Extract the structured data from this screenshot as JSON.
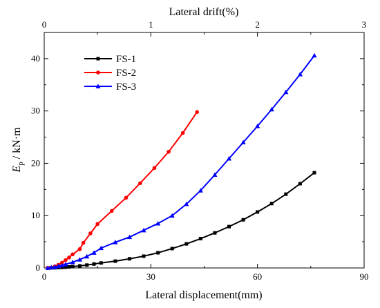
{
  "chart_data": {
    "type": "line",
    "xlabel": "Lateral displacement(mm)",
    "x2label": "Lateral drift(%)",
    "ylabel_main": "E",
    "ylabel_sub": "p",
    "ylabel_rest": " / kN·m",
    "xlim": [
      0,
      90
    ],
    "x2lim": [
      0,
      3
    ],
    "ylim": [
      0,
      45
    ],
    "xticks": [
      0,
      30,
      60,
      90
    ],
    "x2ticks": [
      0,
      1,
      2,
      3
    ],
    "yticks": [
      0,
      10,
      20,
      30,
      40
    ],
    "legend_position": "top-left",
    "series": [
      {
        "name": "FS-1",
        "color": "#000000",
        "marker": "square",
        "x": [
          1,
          2,
          3,
          4,
          5,
          6,
          7,
          8,
          10,
          12,
          14,
          16,
          20,
          24,
          28,
          32,
          36,
          40,
          44,
          48,
          52,
          56,
          60,
          64,
          68,
          72,
          76
        ],
        "y": [
          0,
          0.02,
          0.04,
          0.07,
          0.1,
          0.14,
          0.2,
          0.26,
          0.4,
          0.55,
          0.75,
          0.95,
          1.3,
          1.75,
          2.25,
          2.9,
          3.7,
          4.6,
          5.6,
          6.7,
          7.9,
          9.2,
          10.7,
          12.3,
          14.1,
          16.1,
          18.2
        ]
      },
      {
        "name": "FS-2",
        "color": "#ff0000",
        "marker": "circle",
        "x": [
          1,
          2,
          3,
          4,
          5,
          6,
          7,
          8,
          10,
          11,
          13,
          15,
          19,
          23,
          27,
          31,
          35,
          39,
          43
        ],
        "y": [
          0,
          0.1,
          0.3,
          0.6,
          1.0,
          1.5,
          2.0,
          2.6,
          3.6,
          4.8,
          6.6,
          8.4,
          10.9,
          13.4,
          16.2,
          19.1,
          22.2,
          25.8,
          29.8
        ]
      },
      {
        "name": "FS-3",
        "color": "#0000ff",
        "marker": "triangle",
        "x": [
          1,
          2,
          3,
          4,
          5,
          6,
          8,
          10,
          12,
          14,
          16,
          20,
          24,
          28,
          32,
          36,
          40,
          44,
          48,
          52,
          56,
          60,
          64,
          68,
          72,
          76
        ],
        "y": [
          0,
          0.1,
          0.2,
          0.35,
          0.5,
          0.7,
          1.1,
          1.6,
          2.2,
          2.9,
          3.8,
          4.9,
          5.9,
          7.2,
          8.5,
          10.0,
          12.2,
          14.8,
          17.8,
          20.9,
          24.0,
          27.1,
          30.3,
          33.6,
          37.0,
          40.6
        ]
      }
    ]
  }
}
